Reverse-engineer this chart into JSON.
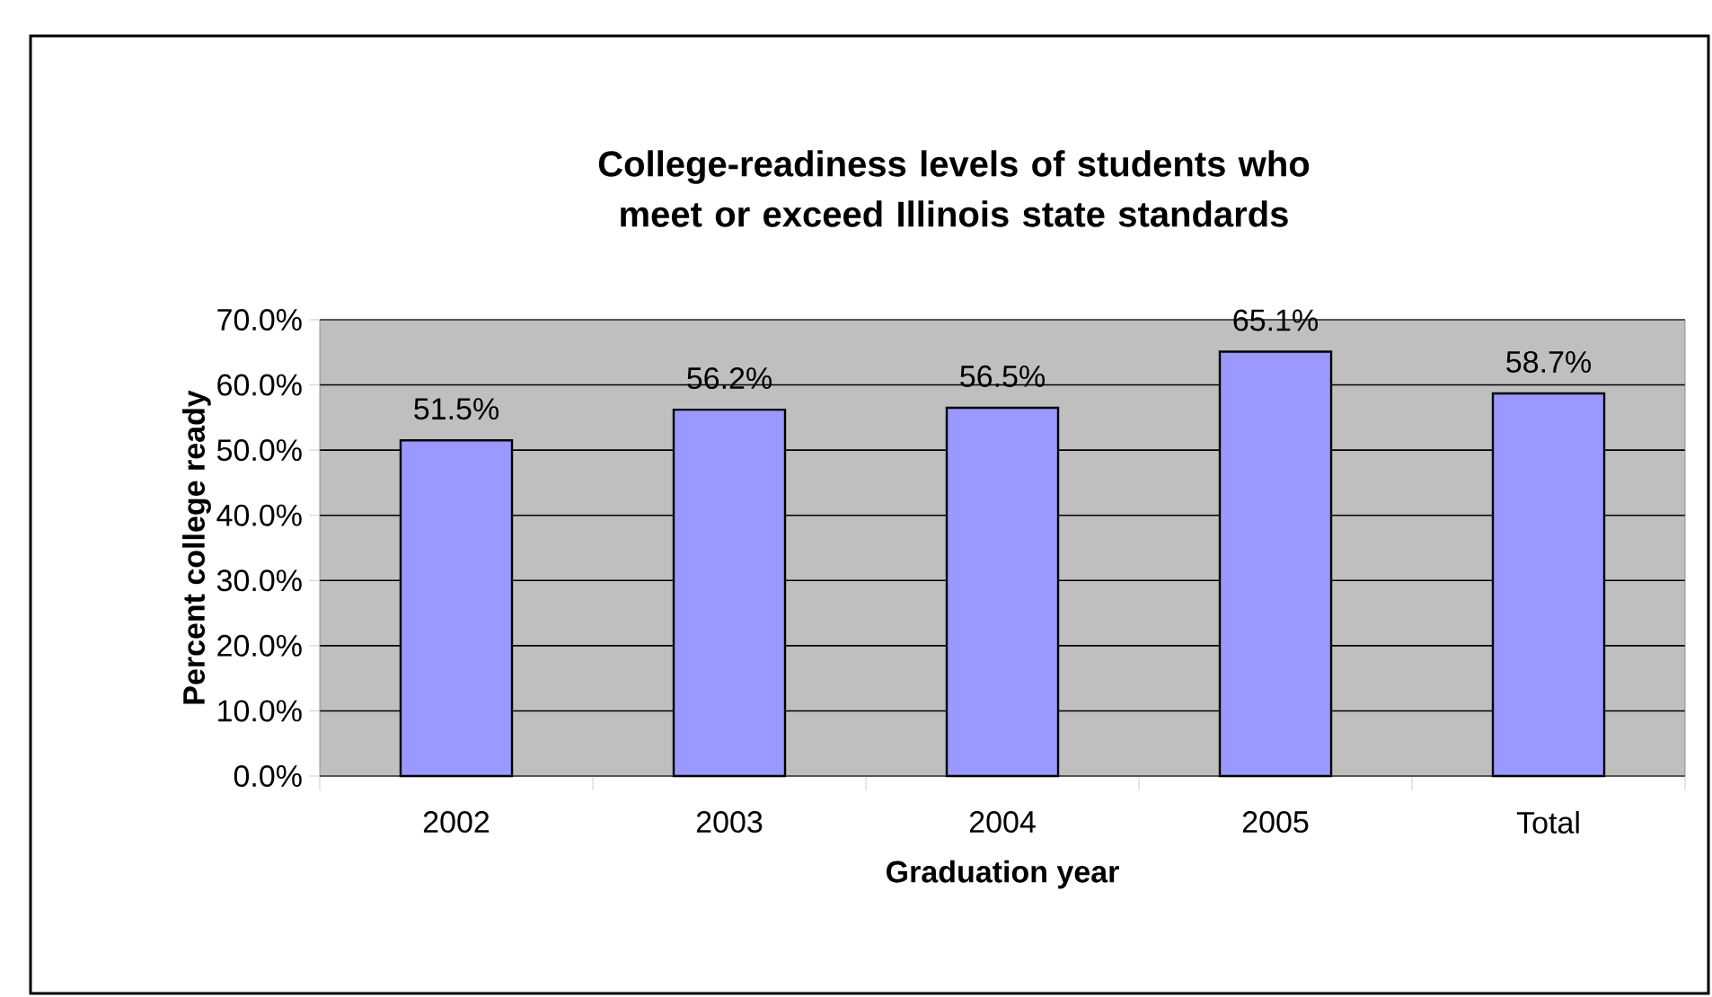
{
  "chart_data": {
    "type": "bar",
    "title": "College-readiness levels of students who meet or exceed Illinois state standards",
    "xlabel": "Graduation year",
    "ylabel": "Percent college ready",
    "categories": [
      "2002",
      "2003",
      "2004",
      "2005",
      "Total"
    ],
    "values": [
      51.5,
      56.2,
      56.5,
      65.1,
      58.7
    ],
    "value_labels": [
      "51.5%",
      "56.2%",
      "56.5%",
      "65.1%",
      "58.7%"
    ],
    "color": "#9999ff",
    "ylim": [
      0,
      70
    ],
    "yticks": [
      {
        "value": 0,
        "label": "0.0%"
      },
      {
        "value": 10,
        "label": "10.0%"
      },
      {
        "value": 20,
        "label": "20.0%"
      },
      {
        "value": 30,
        "label": "30.0%"
      },
      {
        "value": 40,
        "label": "40.0%"
      },
      {
        "value": 50,
        "label": "50.0%"
      },
      {
        "value": 60,
        "label": "60.0%"
      },
      {
        "value": 70,
        "label": "70.0%"
      }
    ],
    "grid": "y"
  }
}
